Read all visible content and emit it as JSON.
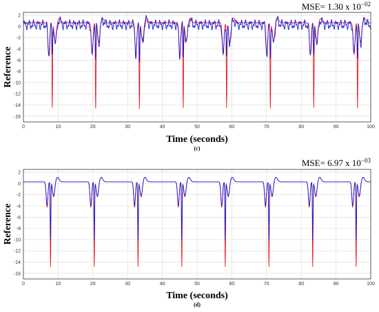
{
  "chart_data": [
    {
      "type": "line",
      "panel_label": "(c)",
      "annotation": {
        "prefix": "MSE= 1.30 x 10",
        "exponent": "−02"
      },
      "xlabel": "Time (seconds)",
      "ylabel": "Reference",
      "xlim": [
        0,
        100
      ],
      "ylim": [
        -17,
        2.5
      ],
      "x_ticks": [
        0,
        10,
        20,
        30,
        40,
        50,
        60,
        70,
        80,
        90,
        100
      ],
      "y_ticks": [
        2,
        0,
        -2,
        -4,
        -6,
        -8,
        -10,
        -12,
        -14,
        -16
      ],
      "grid": true,
      "beat_times": [
        8.3,
        20.8,
        33.4,
        46.0,
        58.5,
        71.1,
        83.6,
        96.2
      ],
      "series": [
        {
          "color": "#e8131b",
          "baseline": 0.7,
          "ripple": 0.15,
          "spike_depth": -14.5,
          "notch_depth": -5.8
        },
        {
          "color": "#1a1ad6",
          "baseline": 0.3,
          "ripple": 0.9,
          "spike_depth": -5.5,
          "notch_depth": -5.5
        }
      ]
    },
    {
      "type": "line",
      "panel_label": "(d)",
      "annotation": {
        "prefix": "MSE= 6.97 x 10",
        "exponent": "−03"
      },
      "xlabel": "Time (seconds)",
      "ylabel": "Reference",
      "xlim": [
        0,
        100
      ],
      "ylim": [
        -17,
        2.5
      ],
      "x_ticks": [
        0,
        10,
        20,
        30,
        40,
        50,
        60,
        70,
        80,
        90,
        100
      ],
      "y_ticks": [
        2,
        0,
        -2,
        -4,
        -6,
        -8,
        -10,
        -12,
        -14,
        -16
      ],
      "grid": true,
      "beat_times": [
        7.8,
        20.4,
        33.0,
        45.6,
        58.1,
        70.7,
        83.3,
        95.8
      ],
      "series": [
        {
          "color": "#e8131b",
          "baseline": 0.3,
          "ripple": 0.0,
          "spike_depth": -14.8,
          "notch_depth": -4.5
        },
        {
          "color": "#1a1ad6",
          "baseline": 0.3,
          "ripple": 0.0,
          "spike_depth": -10.0,
          "notch_depth": -4.2
        }
      ]
    }
  ]
}
